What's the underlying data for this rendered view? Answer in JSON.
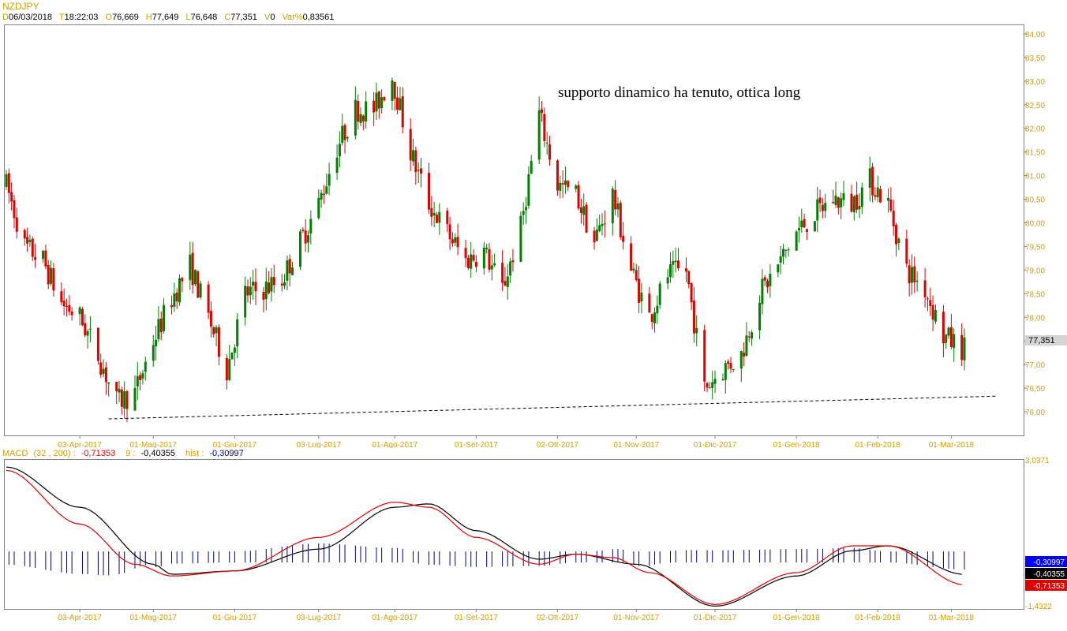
{
  "header": {
    "symbol": "NZDJPY",
    "date_key": "D",
    "date": "06/03/2018",
    "time_key": "T",
    "time": "18:22:03",
    "open_key": "O",
    "open": "76,669",
    "high_key": "H",
    "high": "77,649",
    "low_key": "L",
    "low": "76,648",
    "close_key": "C",
    "close": "77,351",
    "vol_key": "V",
    "vol": "0",
    "var_key": "Var%",
    "var": "0,83561"
  },
  "macd_header": {
    "name": "MACD",
    "params": "(32 , 200) :",
    "macd": "-0,71353",
    "signal_key": "9 :",
    "signal": "-0,40355",
    "hist_key": "hist :",
    "hist": "-0,30997"
  },
  "colors": {
    "up": "#008000",
    "down": "#e00000",
    "axis_label": "#c9a100",
    "macd_line": "#e00000",
    "signal_line": "#000000",
    "histogram": "#000080"
  },
  "chart_data": [
    {
      "type": "candlestick",
      "title": "NZDJPY",
      "annotation": "supporto dinamico ha tenuto, ottica long",
      "ylim": [
        75.5,
        84.2
      ],
      "y_ticks": [
        "76,00",
        "76,50",
        "77,00",
        "77,50",
        "78,00",
        "78,50",
        "79,00",
        "79,50",
        "80,00",
        "80,50",
        "81,00",
        "81,50",
        "82,00",
        "82,50",
        "83,00",
        "83,50",
        "84,00"
      ],
      "y_tick_values": [
        76,
        76.5,
        77,
        77.5,
        78,
        78.5,
        79,
        79.5,
        80,
        80.5,
        81,
        81.5,
        82,
        82.5,
        83,
        83.5,
        84
      ],
      "last_price_label": "77,351",
      "last_price": 77.351,
      "x_ticks": [
        "03-Apr-2017",
        "01-Mag-2017",
        "01-Giu-2017",
        "03-Lug-2017",
        "01-Ago-2017",
        "01-Set-2017",
        "02-Ott-2017",
        "01-Nov-2017",
        "01-Dic-2017",
        "01-Gen-2018",
        "01-Feb-2018",
        "01-Mar-2018"
      ],
      "x_tick_dates": [
        "2017-04-03",
        "2017-05-01",
        "2017-06-01",
        "2017-07-03",
        "2017-08-01",
        "2017-09-01",
        "2017-10-02",
        "2017-11-01",
        "2017-12-01",
        "2018-01-01",
        "2018-02-01",
        "2018-03-01"
      ],
      "date_range": [
        "2017-03-06",
        "2018-03-06"
      ],
      "close_anchors": [
        [
          "2017-03-06",
          80.8
        ],
        [
          "2017-03-13",
          79.5
        ],
        [
          "2017-03-20",
          79.2
        ],
        [
          "2017-03-27",
          78.3
        ],
        [
          "2017-04-03",
          78.0
        ],
        [
          "2017-04-10",
          77.2
        ],
        [
          "2017-04-17",
          76.2
        ],
        [
          "2017-04-24",
          76.4
        ],
        [
          "2017-05-01",
          77.5
        ],
        [
          "2017-05-08",
          78.4
        ],
        [
          "2017-05-15",
          79.1
        ],
        [
          "2017-05-22",
          78.0
        ],
        [
          "2017-05-29",
          76.9
        ],
        [
          "2017-06-05",
          78.5
        ],
        [
          "2017-06-12",
          78.6
        ],
        [
          "2017-06-19",
          78.8
        ],
        [
          "2017-06-26",
          79.6
        ],
        [
          "2017-07-03",
          80.4
        ],
        [
          "2017-07-10",
          81.6
        ],
        [
          "2017-07-17",
          82.4
        ],
        [
          "2017-07-24",
          82.4
        ],
        [
          "2017-07-31",
          83.1
        ],
        [
          "2017-08-07",
          81.5
        ],
        [
          "2017-08-14",
          80.4
        ],
        [
          "2017-08-21",
          79.8
        ],
        [
          "2017-08-28",
          79.2
        ],
        [
          "2017-09-04",
          79.4
        ],
        [
          "2017-09-11",
          78.6
        ],
        [
          "2017-09-18",
          79.9
        ],
        [
          "2017-09-25",
          82.3
        ],
        [
          "2017-10-02",
          80.8
        ],
        [
          "2017-10-09",
          80.6
        ],
        [
          "2017-10-16",
          79.6
        ],
        [
          "2017-10-23",
          80.6
        ],
        [
          "2017-10-30",
          79.0
        ],
        [
          "2017-11-06",
          78.0
        ],
        [
          "2017-11-13",
          78.9
        ],
        [
          "2017-11-20",
          79.0
        ],
        [
          "2017-11-27",
          76.5
        ],
        [
          "2017-12-04",
          76.9
        ],
        [
          "2017-12-11",
          77.2
        ],
        [
          "2017-12-18",
          78.5
        ],
        [
          "2017-12-25",
          79.1
        ],
        [
          "2018-01-01",
          79.8
        ],
        [
          "2018-01-08",
          80.2
        ],
        [
          "2018-01-15",
          80.5
        ],
        [
          "2018-01-22",
          80.4
        ],
        [
          "2018-01-29",
          80.9
        ],
        [
          "2018-02-05",
          80.4
        ],
        [
          "2018-02-12",
          79.0
        ],
        [
          "2018-02-19",
          78.6
        ],
        [
          "2018-02-26",
          77.6
        ],
        [
          "2018-03-05",
          77.35
        ]
      ],
      "support_line": {
        "start": [
          "2017-04-14",
          75.85
        ],
        "end": [
          "2018-03-18",
          76.33
        ]
      }
    },
    {
      "type": "line",
      "title": "MACD",
      "ylim": [
        -1.4322,
        3.0371
      ],
      "y_ticks": [
        "3,0371",
        "-1,4322"
      ],
      "y_tick_values": [
        3.0371,
        -1.4322
      ],
      "series": [
        {
          "name": "MACD",
          "points": [
            [
              "2017-03-06",
              2.7
            ],
            [
              "2017-04-03",
              1.1
            ],
            [
              "2017-04-24",
              -0.1
            ],
            [
              "2017-05-08",
              -0.45
            ],
            [
              "2017-06-01",
              -0.3
            ],
            [
              "2017-07-03",
              0.7
            ],
            [
              "2017-08-01",
              1.75
            ],
            [
              "2017-08-14",
              1.6
            ],
            [
              "2017-09-01",
              0.7
            ],
            [
              "2017-09-25",
              -0.1
            ],
            [
              "2017-10-09",
              0.2
            ],
            [
              "2017-10-23",
              0.1
            ],
            [
              "2017-11-06",
              -0.35
            ],
            [
              "2017-12-01",
              -1.3
            ],
            [
              "2018-01-01",
              -0.35
            ],
            [
              "2018-01-22",
              0.45
            ],
            [
              "2018-02-05",
              0.45
            ],
            [
              "2018-03-06",
              -0.71353
            ]
          ]
        },
        {
          "name": "9",
          "points": [
            [
              "2017-03-06",
              2.8
            ],
            [
              "2017-04-03",
              1.6
            ],
            [
              "2017-05-01",
              -0.1
            ],
            [
              "2017-05-08",
              -0.4
            ],
            [
              "2017-06-01",
              -0.3
            ],
            [
              "2017-07-03",
              0.35
            ],
            [
              "2017-08-01",
              1.6
            ],
            [
              "2017-08-14",
              1.7
            ],
            [
              "2017-09-01",
              0.9
            ],
            [
              "2017-09-25",
              0.05
            ],
            [
              "2017-10-09",
              0.2
            ],
            [
              "2017-11-01",
              -0.1
            ],
            [
              "2017-12-01",
              -1.35
            ],
            [
              "2018-01-01",
              -0.45
            ],
            [
              "2018-01-22",
              0.3
            ],
            [
              "2018-02-05",
              0.45
            ],
            [
              "2018-03-06",
              -0.40355
            ]
          ]
        }
      ],
      "histogram": {
        "name": "hist",
        "start_value": -0.1,
        "end_value": -0.30997
      },
      "value_labels": [
        "-0,30997",
        "-0,40355",
        "-0,71353"
      ],
      "x_ticks": [
        "03-Apr-2017",
        "01-Mag-2017",
        "01-Giu-2017",
        "03-Lug-2017",
        "01-Ago-2017",
        "01-Set-2017",
        "02-Ott-2017",
        "01-Nov-2017",
        "01-Dic-2017",
        "01-Gen-2018",
        "01-Feb-2018",
        "01-Mar-2018"
      ]
    }
  ]
}
